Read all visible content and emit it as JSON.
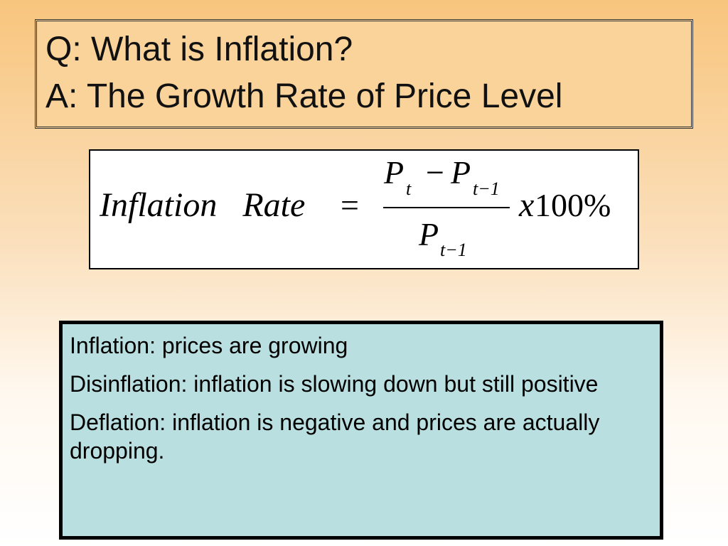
{
  "title": {
    "question": "Q: What is Inflation?",
    "answer": "A: The Growth Rate of Price Level"
  },
  "formula": {
    "lhs": "Inflation   Rate",
    "equals": "=",
    "num_p1": "P",
    "num_sub1": "t",
    "minus": "−",
    "num_p2": "P",
    "num_sub2": "t−1",
    "den_p": "P",
    "den_sub": "t−1",
    "multiplier_x": "x",
    "multiplier": "100%"
  },
  "notes": [
    "Inflation: prices are growing",
    "Disinflation: inflation is slowing down but still positive",
    "Deflation: inflation is negative and prices are actually dropping."
  ],
  "colors": {
    "title_box": "#fad39a",
    "notes_box": "#b9dfe0"
  }
}
